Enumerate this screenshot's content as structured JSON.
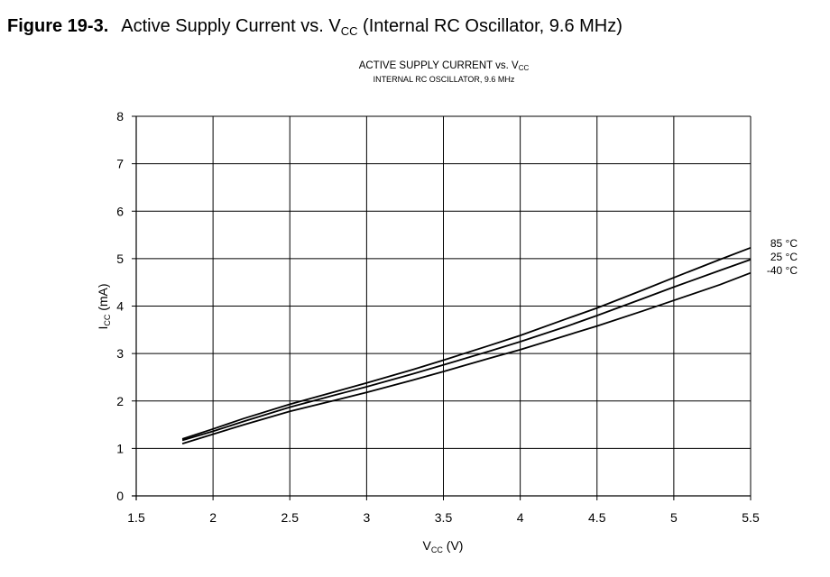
{
  "figure": {
    "number": "Figure 19-3.",
    "title_main": "Active Supply Current vs. V",
    "title_sub": "CC",
    "title_rest": " (Internal RC Oscillator, 9.6 MHz)"
  },
  "chart_data": {
    "type": "line",
    "title_main": "ACTIVE SUPPLY CURRENT vs. V",
    "title_sub": "CC",
    "subtitle": "INTERNAL RC OSCILLATOR, 9.6 MHz",
    "xlabel_main": "V",
    "xlabel_sub": "CC",
    "xlabel_rest": " (V)",
    "ylabel_main": "I",
    "ylabel_sub": "CC",
    "ylabel_rest": " (mA)",
    "xlim": [
      1.5,
      5.5
    ],
    "ylim": [
      0,
      8
    ],
    "xticks": [
      1.5,
      2,
      2.5,
      3,
      3.5,
      4,
      4.5,
      5,
      5.5
    ],
    "xtick_labels": [
      "1.5",
      "2",
      "2.5",
      "3",
      "3.5",
      "4",
      "4.5",
      "5",
      "5.5"
    ],
    "yticks": [
      0,
      1,
      2,
      3,
      4,
      5,
      6,
      7,
      8
    ],
    "ytick_labels": [
      "0",
      "1",
      "2",
      "3",
      "4",
      "5",
      "6",
      "7",
      "8"
    ],
    "grid": true,
    "legend": "end-of-line labels at right",
    "line_color": "#000000",
    "series": [
      {
        "name": "85 °C",
        "x": [
          1.8,
          2.0,
          2.2,
          2.5,
          2.8,
          3.0,
          3.3,
          3.5,
          3.8,
          4.0,
          4.3,
          4.5,
          4.8,
          5.0,
          5.3,
          5.5
        ],
        "y": [
          1.2,
          1.41,
          1.63,
          1.93,
          2.2,
          2.38,
          2.66,
          2.86,
          3.17,
          3.38,
          3.73,
          3.96,
          4.34,
          4.6,
          4.98,
          5.23
        ]
      },
      {
        "name": "25 °C",
        "x": [
          1.8,
          2.0,
          2.2,
          2.5,
          2.8,
          3.0,
          3.3,
          3.5,
          3.8,
          4.0,
          4.3,
          4.5,
          4.8,
          5.0,
          5.3,
          5.5
        ],
        "y": [
          1.17,
          1.36,
          1.57,
          1.87,
          2.13,
          2.3,
          2.57,
          2.76,
          3.05,
          3.25,
          3.57,
          3.8,
          4.16,
          4.4,
          4.75,
          4.98
        ]
      },
      {
        "name": "-40 °C",
        "x": [
          1.8,
          2.0,
          2.2,
          2.5,
          2.8,
          3.0,
          3.3,
          3.5,
          3.8,
          4.0,
          4.3,
          4.5,
          4.8,
          5.0,
          5.3,
          5.5
        ],
        "y": [
          1.1,
          1.3,
          1.5,
          1.78,
          2.02,
          2.18,
          2.44,
          2.62,
          2.9,
          3.08,
          3.38,
          3.58,
          3.9,
          4.12,
          4.45,
          4.7
        ]
      }
    ]
  }
}
